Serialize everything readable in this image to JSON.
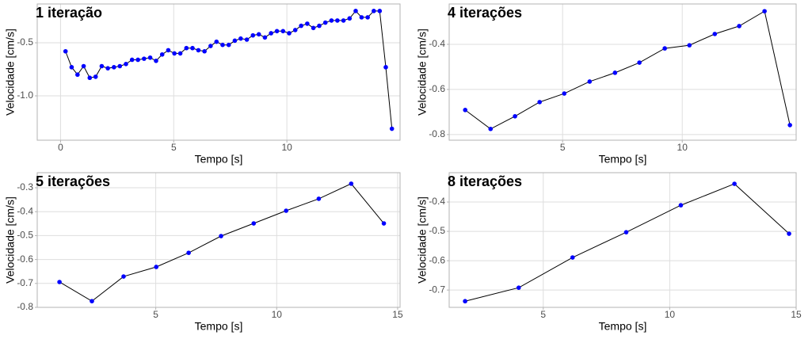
{
  "chart_data": [
    {
      "type": "line",
      "title": "1 iteração",
      "x_label": "Tempo [s]",
      "y_label": "Velocidade [cm/s]",
      "x": [
        0.22,
        0.49,
        0.75,
        1.02,
        1.29,
        1.55,
        1.82,
        2.09,
        2.36,
        2.62,
        2.89,
        3.16,
        3.42,
        3.69,
        3.96,
        4.22,
        4.49,
        4.76,
        5.03,
        5.29,
        5.56,
        5.83,
        6.09,
        6.36,
        6.63,
        6.89,
        7.16,
        7.43,
        7.7,
        7.96,
        8.23,
        8.5,
        8.76,
        9.03,
        9.3,
        9.56,
        9.83,
        10.1,
        10.37,
        10.63,
        10.9,
        11.17,
        11.43,
        11.7,
        11.97,
        12.23,
        12.5,
        12.77,
        13.04,
        13.3,
        13.57,
        13.84,
        14.1,
        14.37,
        14.64
      ],
      "values": [
        -0.58,
        -0.73,
        -0.8,
        -0.72,
        -0.83,
        -0.82,
        -0.72,
        -0.74,
        -0.73,
        -0.72,
        -0.7,
        -0.66,
        -0.66,
        -0.65,
        -0.64,
        -0.67,
        -0.61,
        -0.57,
        -0.6,
        -0.6,
        -0.55,
        -0.55,
        -0.57,
        -0.58,
        -0.53,
        -0.49,
        -0.52,
        -0.52,
        -0.48,
        -0.46,
        -0.47,
        -0.43,
        -0.42,
        -0.45,
        -0.41,
        -0.39,
        -0.39,
        -0.41,
        -0.38,
        -0.34,
        -0.32,
        -0.36,
        -0.34,
        -0.31,
        -0.29,
        -0.29,
        -0.29,
        -0.27,
        -0.2,
        -0.26,
        -0.26,
        -0.2,
        -0.2,
        -0.73,
        -1.31
      ],
      "line_color": "#000000",
      "point_color": "#0000ff",
      "xlim": [
        -1.03,
        15.0
      ],
      "xticks": [
        0,
        5,
        10
      ],
      "ylim": [
        -1.418,
        -0.134
      ],
      "yticks": [
        -0.5,
        {
          "value": -1,
          "label": "-1.0"
        }
      ],
      "grid": true
    },
    {
      "type": "line",
      "title": "4 iterações",
      "x_label": "Tempo [s]",
      "y_label": "Velocidade [cm/s]",
      "x": [
        0.93,
        1.99,
        3.01,
        4.04,
        5.07,
        6.13,
        7.19,
        8.21,
        9.27,
        10.3,
        11.36,
        12.38,
        13.44,
        14.5
      ],
      "values": [
        -0.691,
        -0.775,
        -0.719,
        -0.656,
        -0.618,
        -0.565,
        -0.526,
        -0.481,
        -0.418,
        -0.404,
        -0.354,
        -0.319,
        -0.253,
        -0.758
      ],
      "line_color": "#000000",
      "point_color": "#0000ff",
      "xlim": [
        0.26,
        14.76
      ],
      "xticks": [
        5,
        10
      ],
      "ylim": [
        -0.825,
        -0.221
      ],
      "yticks": [
        -0.4,
        -0.6,
        -0.8
      ],
      "grid": true
    },
    {
      "type": "line",
      "title": "5 iterações",
      "x_label": "Tempo [s]",
      "y_label": "Velocidade [cm/s]",
      "x": [
        1.02,
        2.36,
        3.67,
        5.02,
        6.36,
        7.7,
        9.05,
        10.39,
        11.74,
        13.08,
        14.43
      ],
      "values": [
        -0.694,
        -0.774,
        -0.671,
        -0.631,
        -0.572,
        -0.502,
        -0.449,
        -0.396,
        -0.346,
        -0.283,
        -0.449
      ],
      "line_color": "#000000",
      "point_color": "#0000ff",
      "xlim": [
        0.1,
        15.1
      ],
      "xticks": [
        5,
        10,
        15
      ],
      "ylim": [
        -0.8,
        -0.237
      ],
      "yticks": [
        -0.3,
        -0.4,
        -0.5,
        -0.6,
        -0.7,
        -0.8
      ],
      "grid": true
    },
    {
      "type": "line",
      "title": "8 iterações",
      "x_label": "Tempo [s]",
      "y_label": "Velocidade [cm/s]",
      "x": [
        1.91,
        4.03,
        6.16,
        8.28,
        10.44,
        12.56,
        14.72
      ],
      "values": [
        -0.738,
        -0.692,
        -0.589,
        -0.503,
        -0.411,
        -0.338,
        -0.508
      ],
      "line_color": "#000000",
      "point_color": "#0000ff",
      "xlim": [
        1.28,
        15.0
      ],
      "xticks": [
        5,
        10,
        15
      ],
      "ylim": [
        -0.759,
        -0.3
      ],
      "yticks": [
        -0.4,
        -0.5,
        -0.6,
        -0.7
      ],
      "grid": true
    }
  ]
}
